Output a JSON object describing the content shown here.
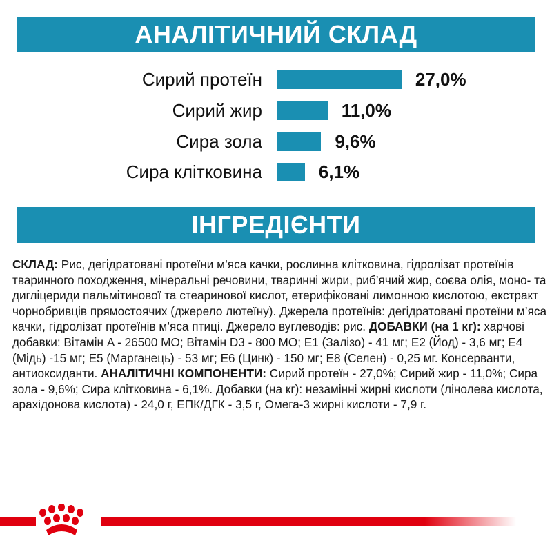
{
  "analysis": {
    "title": "АНАЛІТИЧНИЙ СКЛАД",
    "items": [
      {
        "label": "Сирий протеїн",
        "value_text": "27,0%",
        "value": 27.0
      },
      {
        "label": "Сирий жир",
        "value_text": "11,0%",
        "value": 11.0
      },
      {
        "label": "Сира зола",
        "value_text": "9,6%",
        "value": 9.6
      },
      {
        "label": "Сира клітковина",
        "value_text": "6,1%",
        "value": 6.1
      }
    ],
    "bar_color": "#1a8fb2"
  },
  "ingredients": {
    "title": "ІНГРЕДІЄНТИ",
    "composition_label": "СКЛАД:",
    "composition_text": " Рис, дегідратовані протеїни м’яса качки, рослинна клітковина, гідролізат протеїнів тваринного походження, мінеральні речовини, тваринні жири, риб’ячий жир, соєва олія, моно- та дигліцериди пальмітинової та стеаринової кислот, етерифіковані лимонною кислотою, екстракт чорнобривців прямостоячих (джерело лютеїну). Джерела протеїнів: дегідратовані протеїни м’яса качки, гідролізат протеїнів м’яса птиці. Джерело вуглеводів: рис. ",
    "additives_label": "ДОБАВКИ (на 1 кг):",
    "additives_text": " харчові добавки: Вітамін A - 26500 МО; Вітамін D3 - 800 МО; E1 (Залізо) - 41 мг; E2 (Йод) - 3,6 мг; E4 (Мідь) -15 мг; E5 (Марганець) - 53 мг; E6 (Цинк) - 150 мг; E8 (Селен) - 0,25 мг. Консерванти, антиоксиданти. ",
    "analytical_label": "АНАЛІТИЧНІ КОМПОНЕНТИ:",
    "analytical_text": " Сирий протеїн - 27,0%; Сирий жир - 11,0%; Сира зола - 9,6%; Сира клітковина - 6,1%. Добавки (на кг): незамінні жирні кислоти (лінолева кислота, арахідонова кислота) - 24,0 г, ЕПК/ДГК - 3,5 г, Омега-3 жирні кислоти - 7,9 г."
  },
  "footer": {
    "logo": "royal-canin-crown-logo",
    "accent_color": "#e0000f"
  }
}
